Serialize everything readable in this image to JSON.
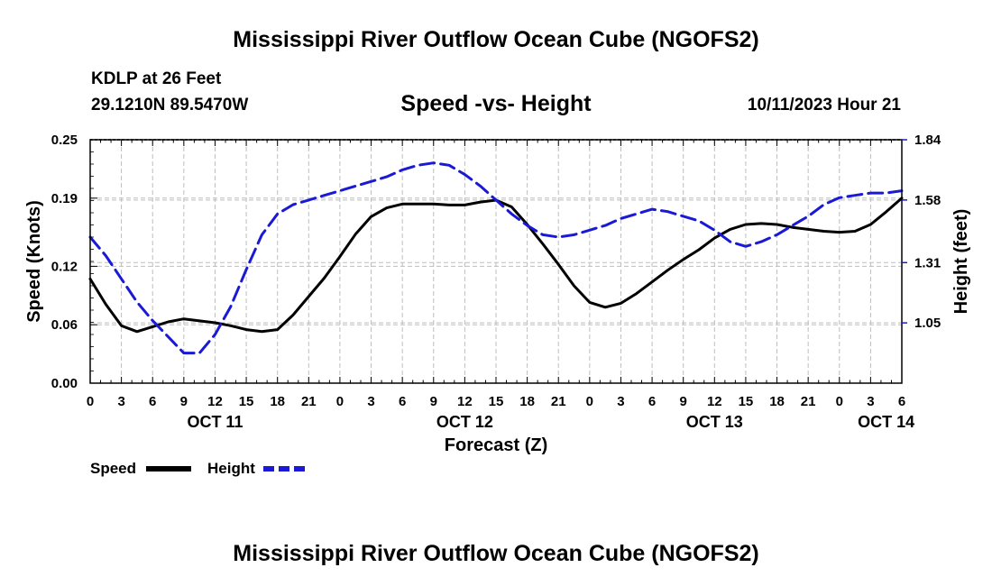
{
  "page": {
    "title": "Mississippi River Outflow Ocean Cube (NGOFS2)",
    "station": "KDLP at 26 Feet",
    "coords": "29.1210N  89.5470W",
    "subtitle": "Speed -vs- Height",
    "datetime": "10/11/2023 Hour 21",
    "footer_title": "Mississippi River Outflow Ocean Cube (NGOFS2)"
  },
  "legend": {
    "speed_label": "Speed",
    "height_label": "Height"
  },
  "colors": {
    "speed": "#000000",
    "height": "#1a1ad6",
    "grid": "#bdbdbd"
  },
  "chart_data": {
    "type": "line",
    "title": "Speed -vs- Height",
    "xlabel": "Forecast (Z)",
    "ylabel": "Speed (Knots)",
    "y2label": "Height (feet)",
    "xlim": [
      0,
      78
    ],
    "ylim": [
      0,
      0.25
    ],
    "y2lim": [
      0.79,
      1.84
    ],
    "x_ticks": [
      0,
      3,
      6,
      9,
      12,
      15,
      18,
      21,
      24,
      27,
      30,
      33,
      36,
      39,
      42,
      45,
      48,
      51,
      54,
      57,
      60,
      63,
      66,
      69,
      72,
      75,
      78
    ],
    "x_tick_labels": [
      "0",
      "3",
      "6",
      "9",
      "12",
      "15",
      "18",
      "21",
      "0",
      "3",
      "6",
      "9",
      "12",
      "15",
      "18",
      "21",
      "0",
      "3",
      "6",
      "9",
      "12",
      "15",
      "18",
      "21",
      "0",
      "3",
      "6"
    ],
    "date_labels": [
      {
        "x": 12,
        "label": "OCT 11"
      },
      {
        "x": 36,
        "label": "OCT 12"
      },
      {
        "x": 60,
        "label": "OCT 13"
      },
      {
        "x": 76.5,
        "label": "OCT 14"
      }
    ],
    "y_ticks": [
      0,
      0.06,
      0.12,
      0.19,
      0.25
    ],
    "y_tick_labels": [
      "0.00",
      "0.06",
      "0.12",
      "0.19",
      "0.25"
    ],
    "y2_ticks": [
      1.05,
      1.31,
      1.58,
      1.84
    ],
    "y2_tick_labels": [
      "1.05",
      "1.31",
      "1.58",
      "1.84"
    ],
    "series": [
      {
        "name": "Speed",
        "axis": "left",
        "style": "solid",
        "x": [
          0,
          1.5,
          3,
          4.5,
          6,
          7.5,
          9,
          10.5,
          12,
          13.5,
          15,
          16.5,
          18,
          19.5,
          21,
          22.5,
          24,
          25.5,
          27,
          28.5,
          30,
          31.5,
          33,
          34.5,
          36,
          37.5,
          39,
          40.5,
          42,
          43.5,
          45,
          46.5,
          48,
          49.5,
          51,
          52.5,
          54,
          55.5,
          57,
          58.5,
          60,
          61.5,
          63,
          64.5,
          66,
          67.5,
          69,
          70.5,
          72,
          73.5,
          75,
          76.5,
          78
        ],
        "values": [
          0.107,
          0.081,
          0.059,
          0.053,
          0.058,
          0.063,
          0.066,
          0.064,
          0.062,
          0.059,
          0.055,
          0.053,
          0.055,
          0.07,
          0.089,
          0.108,
          0.13,
          0.153,
          0.171,
          0.18,
          0.184,
          0.184,
          0.184,
          0.183,
          0.183,
          0.186,
          0.188,
          0.181,
          0.163,
          0.143,
          0.122,
          0.1,
          0.083,
          0.078,
          0.082,
          0.092,
          0.104,
          0.116,
          0.127,
          0.137,
          0.149,
          0.158,
          0.163,
          0.164,
          0.163,
          0.16,
          0.158,
          0.156,
          0.155,
          0.156,
          0.163,
          0.176,
          0.19
        ]
      },
      {
        "name": "Height",
        "axis": "right",
        "style": "dashed",
        "x": [
          0,
          1.5,
          3,
          4.5,
          6,
          7.5,
          9,
          10.5,
          12,
          13.5,
          15,
          16.5,
          18,
          19.5,
          21,
          22.5,
          24,
          25.5,
          27,
          28.5,
          30,
          31.5,
          33,
          34.5,
          36,
          37.5,
          39,
          40.5,
          42,
          43.5,
          45,
          46.5,
          48,
          49.5,
          51,
          52.5,
          54,
          55.5,
          57,
          58.5,
          60,
          61.5,
          63,
          64.5,
          66,
          67.5,
          69,
          70.5,
          72,
          73.5,
          75,
          76.5,
          78
        ],
        "values": [
          1.42,
          1.34,
          1.24,
          1.14,
          1.06,
          0.99,
          0.92,
          0.92,
          1.0,
          1.12,
          1.28,
          1.43,
          1.52,
          1.56,
          1.58,
          1.6,
          1.62,
          1.64,
          1.66,
          1.68,
          1.71,
          1.73,
          1.74,
          1.73,
          1.69,
          1.64,
          1.58,
          1.52,
          1.47,
          1.43,
          1.42,
          1.43,
          1.45,
          1.47,
          1.5,
          1.52,
          1.54,
          1.53,
          1.51,
          1.49,
          1.45,
          1.4,
          1.38,
          1.4,
          1.43,
          1.47,
          1.51,
          1.56,
          1.59,
          1.6,
          1.61,
          1.61,
          1.62
        ]
      }
    ]
  }
}
